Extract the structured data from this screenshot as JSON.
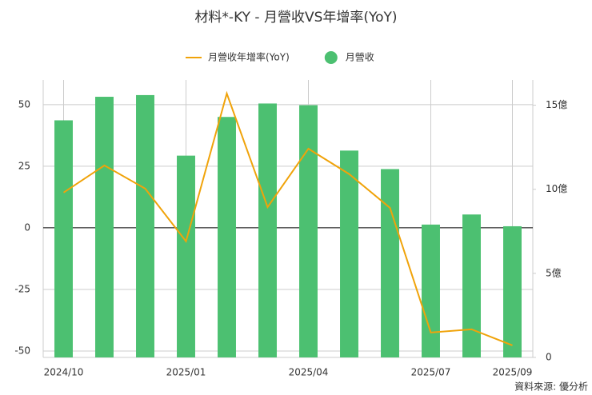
{
  "chart_data": {
    "type": "bar-line",
    "title": "材料*-KY - 月營收VS年增率(YoY)",
    "categories": [
      "2024/10",
      null,
      null,
      "2025/01",
      null,
      null,
      "2025/04",
      null,
      null,
      "2025/07",
      null,
      "2025/09"
    ],
    "series": [
      {
        "name": "月營收年增率(YoY)",
        "type": "line",
        "color": "#f0a30a",
        "axis": "y",
        "values": [
          14.3,
          25.3,
          15.9,
          -5.5,
          54.5,
          8.4,
          32.1,
          21.8,
          8.1,
          -42.5,
          -41.2,
          -47.7
        ]
      },
      {
        "name": "月營收",
        "type": "bar",
        "color": "#4cc071",
        "axis": "y2",
        "values": [
          14.1,
          15.5,
          15.6,
          12.0,
          14.3,
          15.1,
          15.0,
          12.3,
          11.2,
          7.9,
          8.5,
          7.8
        ]
      }
    ],
    "ylim": [
      -52.6,
      60
    ],
    "yticks": [
      50,
      25,
      0,
      -25,
      -50
    ],
    "y2lim": [
      0,
      16.5
    ],
    "y2ticks": [
      {
        "value": 15,
        "label": "15億"
      },
      {
        "value": 10,
        "label": "10億"
      },
      {
        "value": 5,
        "label": "5億"
      },
      0
    ],
    "grid": true,
    "legend": "top",
    "source": "資料來源: 優分析"
  }
}
